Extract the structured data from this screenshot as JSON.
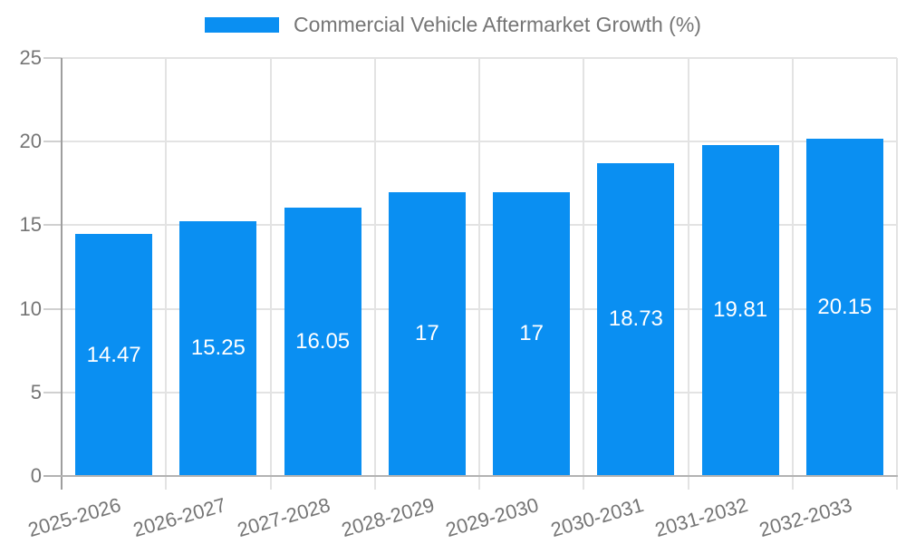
{
  "legend": {
    "series_label": "Commercial Vehicle Aftermarket Growth (%)"
  },
  "chart_data": {
    "type": "bar",
    "title": "Commercial Vehicle Aftermarket Growth (%)",
    "categories": [
      "2025-2026",
      "2026-2027",
      "2027-2028",
      "2028-2029",
      "2029-2030",
      "2030-2031",
      "2031-2032",
      "2032-2033"
    ],
    "values": [
      14.47,
      15.25,
      16.05,
      17,
      17,
      18.73,
      19.81,
      20.15
    ],
    "value_labels": [
      "14.47",
      "15.25",
      "16.05",
      "17",
      "17",
      "18.73",
      "19.81",
      "20.15"
    ],
    "xlabel": "",
    "ylabel": "",
    "ylim": [
      0,
      25
    ],
    "yticks": [
      0,
      5,
      10,
      15,
      20,
      25
    ],
    "grid": true,
    "legend_position": "top",
    "bar_label_position": "middle",
    "colors": {
      "bar": "#0a8ff2",
      "bar_value_text": "#ffffff",
      "gridline": "#e3e3e3",
      "x_axis_line": "#b3b3b3",
      "y_axis_line": "#9e9e9e",
      "tick_mark": "#d0d0d0",
      "text": "#757575"
    }
  }
}
